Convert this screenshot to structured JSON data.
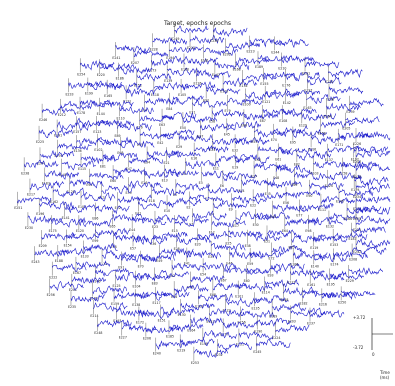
{
  "chart_data": {
    "type": "line",
    "title": "Target, epochs epochs",
    "x_unit_label": "Time (ms)",
    "y_scale_labels": [
      "+3.72",
      "-3.72"
    ],
    "x_scale_label": "0",
    "trace_color": "#1c1ccc",
    "channel_count": 256,
    "visible_channel_labels": [
      "E1",
      "E2",
      "E3",
      "E4",
      "E5",
      "E6",
      "E7",
      "E8",
      "E9",
      "E10",
      "E11",
      "E12",
      "E13",
      "E14",
      "E15",
      "E16",
      "E17",
      "E18",
      "E19",
      "E20",
      "E21",
      "E22",
      "E23",
      "E24",
      "E25",
      "E26",
      "E27",
      "E28",
      "E29",
      "E30",
      "E31",
      "E32",
      "E33",
      "E34",
      "E35",
      "E36",
      "E37",
      "E38",
      "E39",
      "E40",
      "E41",
      "E42",
      "E43",
      "E44",
      "E45",
      "E46",
      "E47",
      "E48",
      "E49",
      "E50",
      "E51",
      "E52",
      "E53",
      "E54",
      "E55",
      "E56",
      "E57",
      "E58",
      "E59",
      "E60",
      "E61",
      "E62",
      "E63",
      "E64",
      "E65",
      "E66",
      "E67",
      "E68",
      "E69",
      "E70",
      "E71",
      "E72",
      "E73",
      "E74",
      "E75",
      "E76",
      "E77",
      "E78",
      "E79",
      "E80",
      "E81",
      "E82",
      "E83",
      "E84",
      "E85",
      "E86",
      "E87",
      "E88",
      "E89",
      "E90",
      "E91",
      "E92",
      "E93",
      "E94",
      "E95",
      "E96",
      "E97",
      "E98",
      "E99",
      "E100",
      "E101",
      "E102",
      "E103",
      "E104",
      "E105",
      "E106",
      "E107",
      "E108",
      "E109",
      "E110",
      "E111",
      "E112",
      "E113",
      "E114",
      "E115",
      "E116",
      "E117",
      "E118",
      "E119",
      "E120",
      "E121",
      "E122",
      "E123",
      "E124",
      "E125",
      "E126",
      "E127",
      "E128",
      "E129",
      "E130",
      "E131",
      "E132",
      "E133",
      "E134",
      "E135",
      "E136",
      "E137",
      "E138",
      "E139",
      "E140",
      "E141",
      "E142",
      "E143",
      "E144",
      "E145",
      "E146",
      "E147",
      "E148",
      "E149",
      "E150",
      "E151",
      "E152",
      "E153",
      "E154",
      "E155",
      "E156",
      "E157",
      "E158",
      "E159",
      "E160",
      "E161",
      "E162",
      "E163",
      "E164",
      "E165",
      "E166",
      "E167",
      "E168",
      "E169",
      "E170",
      "E171",
      "E172",
      "E173",
      "E174",
      "E175",
      "E176",
      "E177",
      "E178",
      "E179",
      "E180",
      "E181",
      "E182",
      "E183",
      "E184",
      "E185",
      "E186",
      "E187",
      "E188",
      "E189",
      "E190",
      "E191",
      "E192",
      "E193",
      "E194",
      "E195",
      "E196",
      "E197",
      "E198",
      "E199",
      "E200",
      "E201",
      "E202",
      "E203",
      "E204",
      "E205",
      "E206",
      "E207",
      "E208",
      "E209",
      "E210",
      "E211",
      "E212",
      "E213",
      "E214",
      "E215",
      "E216",
      "E217",
      "E218",
      "E219",
      "E220",
      "E221",
      "E222",
      "E223",
      "E224",
      "E225",
      "E226",
      "E227",
      "E228",
      "E229",
      "E230",
      "E231",
      "E232",
      "E233",
      "E234",
      "E235",
      "E236",
      "E237",
      "E238",
      "E239",
      "E240",
      "E241",
      "E242",
      "E243",
      "E244",
      "E245",
      "E246",
      "E247",
      "E248",
      "E249",
      "E250",
      "E251",
      "E252",
      "E253",
      "E254",
      "E255",
      "E256"
    ]
  }
}
